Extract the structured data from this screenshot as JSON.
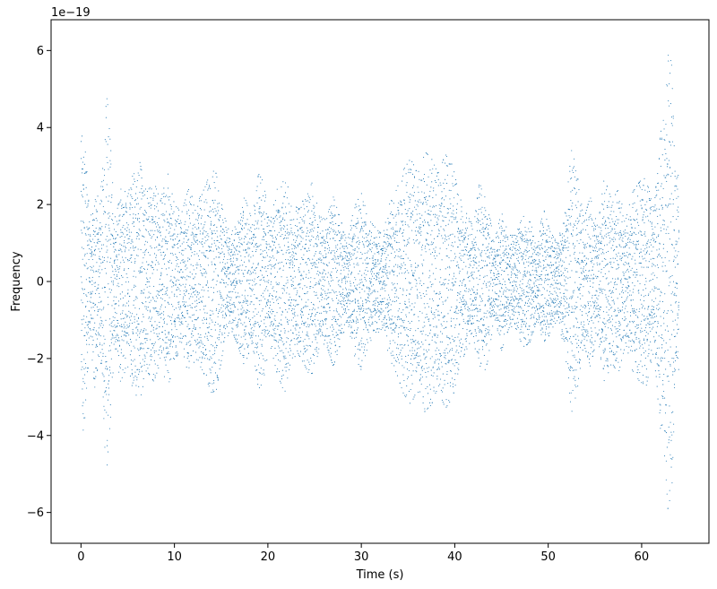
{
  "chart_data": {
    "type": "scatter",
    "title": "",
    "xlabel": "Time (s)",
    "ylabel": "Frequency",
    "offset_label": "1e−19",
    "xlim": [
      -3.2,
      67.2
    ],
    "ylim": [
      -6.8,
      6.8
    ],
    "xticks": [
      0,
      10,
      20,
      30,
      40,
      50,
      60
    ],
    "xtick_labels": [
      "0",
      "10",
      "20",
      "30",
      "40",
      "50",
      "60"
    ],
    "yticks": [
      -6,
      -4,
      -2,
      0,
      2,
      4,
      6
    ],
    "ytick_labels": [
      "−6",
      "−4",
      "−2",
      "0",
      "2",
      "4",
      "6"
    ],
    "grid": false,
    "marker_color": "#1f77b4",
    "x_range": [
      0,
      64
    ],
    "envelope": {
      "time": [
        0,
        0.3,
        0.6,
        1.0,
        1.5,
        2.0,
        2.5,
        2.8,
        3.2,
        3.6,
        4.2,
        5.0,
        5.5,
        6.3,
        7.0,
        7.8,
        8.5,
        9.3,
        10.0,
        10.8,
        11.5,
        12.3,
        13.0,
        14.0,
        14.5,
        15.2,
        16.0,
        16.7,
        17.5,
        18.3,
        19.0,
        19.5,
        20.2,
        21.0,
        21.8,
        22.5,
        23.3,
        24.0,
        24.8,
        25.5,
        26.2,
        27.0,
        27.8,
        28.5,
        29.2,
        30.0,
        30.8,
        31.5,
        32.3,
        33.0,
        33.8,
        34.5,
        35.3,
        36.0,
        36.7,
        37.5,
        38.2,
        39.0,
        39.8,
        40.5,
        41.2,
        42.0,
        42.7,
        43.5,
        44.2,
        45.0,
        45.8,
        46.5,
        47.3,
        48.0,
        48.8,
        49.5,
        50.2,
        51.0,
        51.8,
        52.5,
        53.0,
        53.8,
        54.5,
        55.3,
        56.0,
        56.8,
        57.5,
        58.3,
        59.0,
        59.8,
        60.5,
        61.3,
        62.0,
        62.5,
        62.8,
        63.2,
        63.6,
        64.0
      ],
      "amplitude": [
        3.7,
        3.9,
        3.0,
        1.5,
        2.8,
        1.8,
        4.2,
        4.8,
        3.4,
        1.6,
        2.6,
        2.2,
        2.8,
        3.1,
        2.3,
        2.6,
        2.1,
        2.8,
        2.0,
        1.8,
        2.4,
        2.0,
        2.3,
        2.9,
        2.8,
        1.8,
        1.2,
        1.6,
        2.2,
        1.6,
        2.8,
        2.6,
        1.6,
        2.4,
        2.9,
        2.0,
        1.9,
        2.2,
        2.6,
        1.7,
        1.6,
        2.2,
        1.6,
        1.0,
        1.9,
        2.3,
        1.6,
        1.4,
        1.2,
        2.0,
        2.4,
        2.9,
        3.2,
        2.8,
        3.4,
        3.2,
        2.8,
        3.3,
        3.0,
        2.2,
        1.8,
        1.4,
        2.7,
        2.1,
        1.0,
        1.8,
        1.2,
        1.2,
        1.7,
        1.6,
        1.0,
        1.9,
        1.3,
        1.0,
        1.8,
        3.4,
        3.0,
        1.6,
        2.2,
        1.4,
        2.7,
        2.1,
        2.4,
        1.6,
        2.3,
        2.6,
        2.7,
        1.8,
        3.8,
        4.6,
        5.9,
        5.7,
        2.6,
        2.8
      ]
    }
  }
}
